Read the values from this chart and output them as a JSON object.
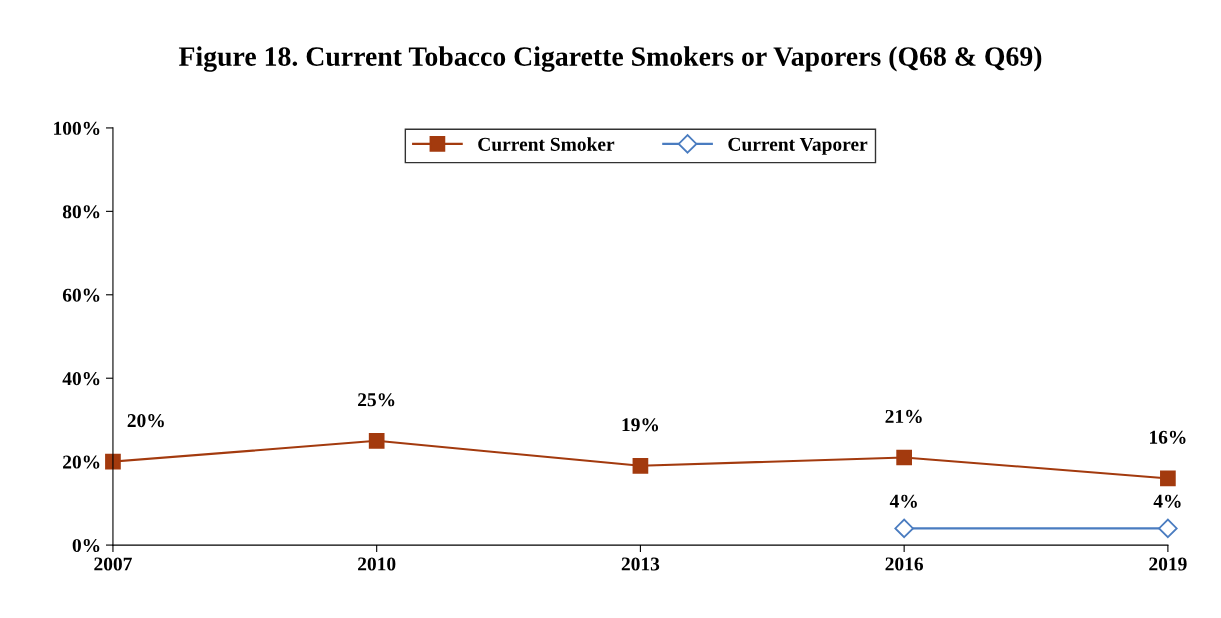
{
  "chart_data": {
    "type": "line",
    "title": "Figure 18. Current Tobacco Cigarette Smokers or Vaporers (Q68 & Q69)",
    "categories": [
      "2007",
      "2010",
      "2013",
      "2016",
      "2019"
    ],
    "series": [
      {
        "name": "Current Smoker",
        "color": "#a33a0e",
        "marker": "square",
        "values": [
          20,
          25,
          19,
          21,
          16
        ],
        "value_labels": [
          "20%",
          "25%",
          "19%",
          "21%",
          "16%"
        ]
      },
      {
        "name": "Current Vaporer",
        "color": "#4a7cc0",
        "marker": "diamond",
        "values": [
          null,
          null,
          null,
          4,
          4
        ],
        "value_labels": [
          null,
          null,
          null,
          "4%",
          "4%"
        ]
      }
    ],
    "ylim": [
      0,
      100
    ],
    "yticks": [
      {
        "value": 0,
        "label": "0%"
      },
      {
        "value": 20,
        "label": "20%"
      },
      {
        "value": 40,
        "label": "40%"
      },
      {
        "value": 60,
        "label": "60%"
      },
      {
        "value": 80,
        "label": "80%"
      },
      {
        "value": 100,
        "label": "100%"
      }
    ],
    "grid": false,
    "legend": "top",
    "line_style": "solid"
  }
}
